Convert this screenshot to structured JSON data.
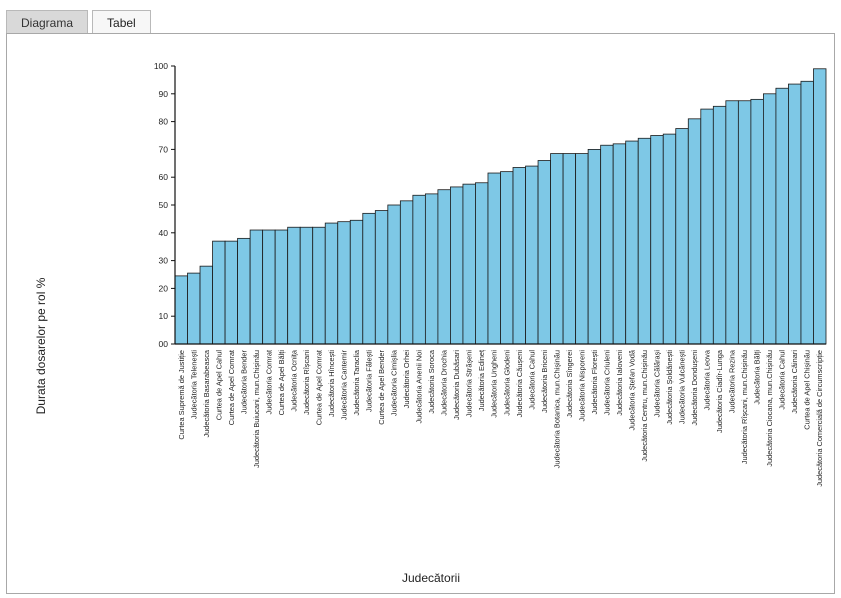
{
  "tabs": [
    {
      "label": "Diagrama",
      "active": true
    },
    {
      "label": "Tabel",
      "active": false
    }
  ],
  "chart_data": {
    "type": "bar",
    "ylabel": "Durata dosarelor pe rol %",
    "xlabel": "Judecătorii",
    "ylim": [
      0,
      100
    ],
    "yticks": [
      "00",
      "10",
      "20",
      "30",
      "40",
      "50",
      "60",
      "70",
      "80",
      "90",
      "100"
    ],
    "bar_color": "#7ec8e6",
    "bar_stroke": "#1a1a1a",
    "categories": [
      "Curtea Supremă de Justiție",
      "Judecătoria Telenești",
      "Judecătoria Basarabeasca",
      "Curtea de Apel Cahul",
      "Curtea de Apel Comrat",
      "Judecătoria Bender",
      "Judecătoria Buiucani, mun.Chișinău",
      "Judecătoria Comrat",
      "Curtea de Apel Bălți",
      "Judecătoria Ocnița",
      "Judecătoria Rîșcani",
      "Curtea de Apel Comrat",
      "Judecătoria Hîncești",
      "Judecătoria Cantemir",
      "Judecătoria Taraclia",
      "Judecătoria Fălești",
      "Curtea de Apel Bender",
      "Judecătoria Cimișlia",
      "Judecătoria Orhei",
      "Judecătoria Anenii Noi",
      "Judecătoria Soroca",
      "Judecătoria Drochia",
      "Judecătoria Dubăsari",
      "Judecătoria Strășeni",
      "Judecătoria Edineț",
      "Judecătoria Ungheni",
      "Judecătoria Glodeni",
      "Judecătoria Căușeni",
      "Judecătoria Cahul",
      "Judecătoria Briceni",
      "Judecătoria Botanica, mun.Chișinău",
      "Judecătoria Sîngerei",
      "Judecătoria Nisporeni",
      "Judecătoria Florești",
      "Judecătoria Criuleni",
      "Judecătoria Ialoveni",
      "Judecătoria Ștefan Vodă",
      "Judecătoria Centru, mun.Chișinău",
      "Judecătoria Călărași",
      "Judecătoria Șoldănești",
      "Judecătoria Vulcănești",
      "Judecătoria Dondușeni",
      "Judecătoria Leova",
      "Judecătoria Ciadîr-Lunga",
      "Judecătoria Rezina",
      "Judecătoria Rîșcani, mun.Chișinău",
      "Judecătoria Bălți",
      "Judecătoria Ciocana, mun.Chișinău",
      "Judecătoria Cahul",
      "Judecătoria Căinari",
      "Curtea de Apel Chișinău",
      "Judecătoria Comercială de Circumscripție"
    ],
    "values": [
      24.5,
      25.5,
      28,
      37,
      37,
      38,
      41,
      41,
      41,
      42,
      42,
      42,
      43.5,
      44,
      44.5,
      47,
      48,
      50,
      51.5,
      53.5,
      54,
      55.5,
      56.5,
      57.5,
      58,
      61.5,
      62,
      63.5,
      64,
      66,
      68.5,
      68.5,
      68.5,
      70,
      71.5,
      72,
      73,
      74,
      75,
      75.5,
      77.5,
      81,
      84.5,
      85.5,
      87.5,
      87.5,
      88,
      90,
      92,
      93.5,
      94.5,
      99
    ]
  }
}
